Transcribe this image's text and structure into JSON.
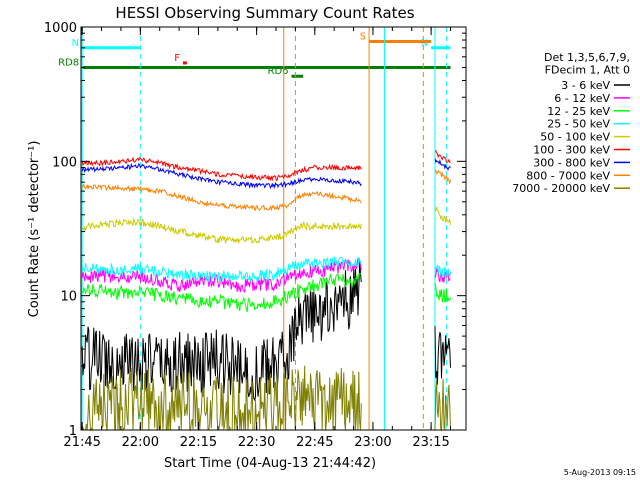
{
  "chart_data": {
    "type": "line",
    "title": "HESSI Observing Summary Count Rates",
    "xlabel": "Start Time (04-Aug-13 21:44:42)",
    "ylabel": "Count Rate (s⁻¹ detector⁻¹)",
    "xlim": [
      "21:44:42",
      "23:24:00"
    ],
    "ylim": [
      1,
      1000
    ],
    "yscale": "log",
    "x_ticks": [
      "21:45",
      "22:00",
      "22:15",
      "22:30",
      "22:45",
      "23:00",
      "23:15"
    ],
    "y_ticks": [
      "1",
      "10",
      "100",
      "1000"
    ],
    "legend_header": [
      "Det 1,3,5,6,7,9,",
      "FDecim 1, Att 0"
    ],
    "legend_placement": "right",
    "timestamp": "5-Aug-2013 09:15",
    "flags": [
      {
        "label": "N",
        "color": "#00ffff",
        "start": "21:45",
        "end": "22:00",
        "level": 700
      },
      {
        "label": "N",
        "color": "#00ffff",
        "start": "23:15",
        "end": "23:20",
        "level": 700
      },
      {
        "label": "S",
        "color": "#ff8000",
        "start": "22:59",
        "end": "23:15",
        "level": 780
      },
      {
        "label": "F",
        "color": "#ff0000",
        "start": "22:11",
        "end": "22:12",
        "level": 540
      },
      {
        "label": "RD6",
        "color": "#008000",
        "start": "22:39",
        "end": "22:42",
        "level": 430
      },
      {
        "label": "RD8",
        "color": "#008000",
        "start": "21:45",
        "end": "23:20",
        "level": 500
      }
    ],
    "vlines": [
      {
        "time": "21:45",
        "color": "#00ffff",
        "style": "solid"
      },
      {
        "time": "22:00",
        "color": "#00ffff",
        "style": "dashed"
      },
      {
        "time": "22:37",
        "color": "#ff8000",
        "style": "solid"
      },
      {
        "time": "22:40",
        "color": "#ff8000",
        "style": "dashed"
      },
      {
        "time": "22:59",
        "color": "#ff8000",
        "style": "solid"
      },
      {
        "time": "23:03",
        "color": "#00ffff",
        "style": "solid"
      },
      {
        "time": "23:13",
        "color": "#ff8000",
        "style": "dashed"
      },
      {
        "time": "23:16",
        "color": "#00ffff",
        "style": "solid"
      },
      {
        "time": "23:19",
        "color": "#00ffff",
        "style": "dashed"
      }
    ],
    "segments": [
      {
        "start": "21:45",
        "end": "22:57"
      },
      {
        "start": "23:16",
        "end": "23:20"
      }
    ],
    "x": [
      "21:45",
      "21:50",
      "21:55",
      "22:00",
      "22:05",
      "22:10",
      "22:15",
      "22:20",
      "22:25",
      "22:30",
      "22:35",
      "22:38",
      "22:41",
      "22:45",
      "22:50",
      "22:55",
      "22:57",
      "23:16",
      "23:18",
      "23:20"
    ],
    "series": [
      {
        "name": "3 - 6 keV",
        "color": "#000000",
        "noise": 0.55,
        "values": [
          3.5,
          3.4,
          3.3,
          3.3,
          3.0,
          3.1,
          3.2,
          3.3,
          2.8,
          2.7,
          3.0,
          4.0,
          6.0,
          7.0,
          8.5,
          10,
          11,
          3.5,
          3.5,
          3.5
        ]
      },
      {
        "name": "6 - 12 keV",
        "color": "#ff00ff",
        "noise": 0.12,
        "values": [
          14,
          14,
          13.5,
          14,
          13,
          12,
          13,
          13,
          12,
          12,
          12,
          14,
          15,
          15,
          16,
          17,
          17,
          15,
          14,
          14
        ]
      },
      {
        "name": "12 - 25 keV",
        "color": "#00ff00",
        "noise": 0.12,
        "values": [
          11,
          11,
          10.5,
          10.5,
          10,
          9.5,
          9.0,
          9.0,
          8.5,
          8.5,
          9.0,
          10,
          11,
          12,
          13,
          13,
          13,
          11,
          10,
          10
        ]
      },
      {
        "name": "25 - 50 keV",
        "color": "#00ffff",
        "noise": 0.1,
        "values": [
          16,
          16,
          15.5,
          16,
          15,
          14.5,
          14,
          14,
          14,
          14,
          14.5,
          16,
          17,
          17,
          18,
          18,
          18,
          16,
          15,
          15
        ]
      },
      {
        "name": "50 - 100 keV",
        "color": "#cccc00",
        "noise": 0.06,
        "values": [
          32,
          34,
          35,
          35,
          33,
          30,
          28,
          26,
          26,
          26,
          27,
          29,
          33,
          33,
          33,
          33,
          33,
          45,
          38,
          35
        ]
      },
      {
        "name": "100 - 300 keV",
        "color": "#ff0000",
        "noise": 0.04,
        "values": [
          96,
          97,
          100,
          103,
          97,
          90,
          85,
          80,
          78,
          76,
          75,
          77,
          85,
          90,
          90,
          90,
          89,
          118,
          105,
          100
        ]
      },
      {
        "name": "300 - 800 keV",
        "color": "#0000ff",
        "noise": 0.04,
        "values": [
          86,
          88,
          90,
          92,
          87,
          80,
          75,
          70,
          68,
          66,
          66,
          68,
          72,
          73,
          72,
          70,
          68,
          102,
          95,
          88
        ]
      },
      {
        "name": "800 - 7000 keV",
        "color": "#ff8000",
        "noise": 0.04,
        "values": [
          65,
          64,
          63,
          62,
          60,
          55,
          50,
          47,
          46,
          45,
          45,
          47,
          55,
          58,
          55,
          52,
          50,
          85,
          78,
          70
        ]
      },
      {
        "name": "7000 - 20000 keV",
        "color": "#808000",
        "noise": 0.6,
        "values": [
          1.4,
          1.5,
          1.6,
          1.7,
          1.5,
          1.6,
          1.5,
          1.4,
          1.4,
          1.4,
          1.5,
          1.6,
          1.7,
          1.6,
          1.6,
          1.6,
          1.6,
          1.4,
          1.4,
          1.4
        ]
      }
    ]
  }
}
